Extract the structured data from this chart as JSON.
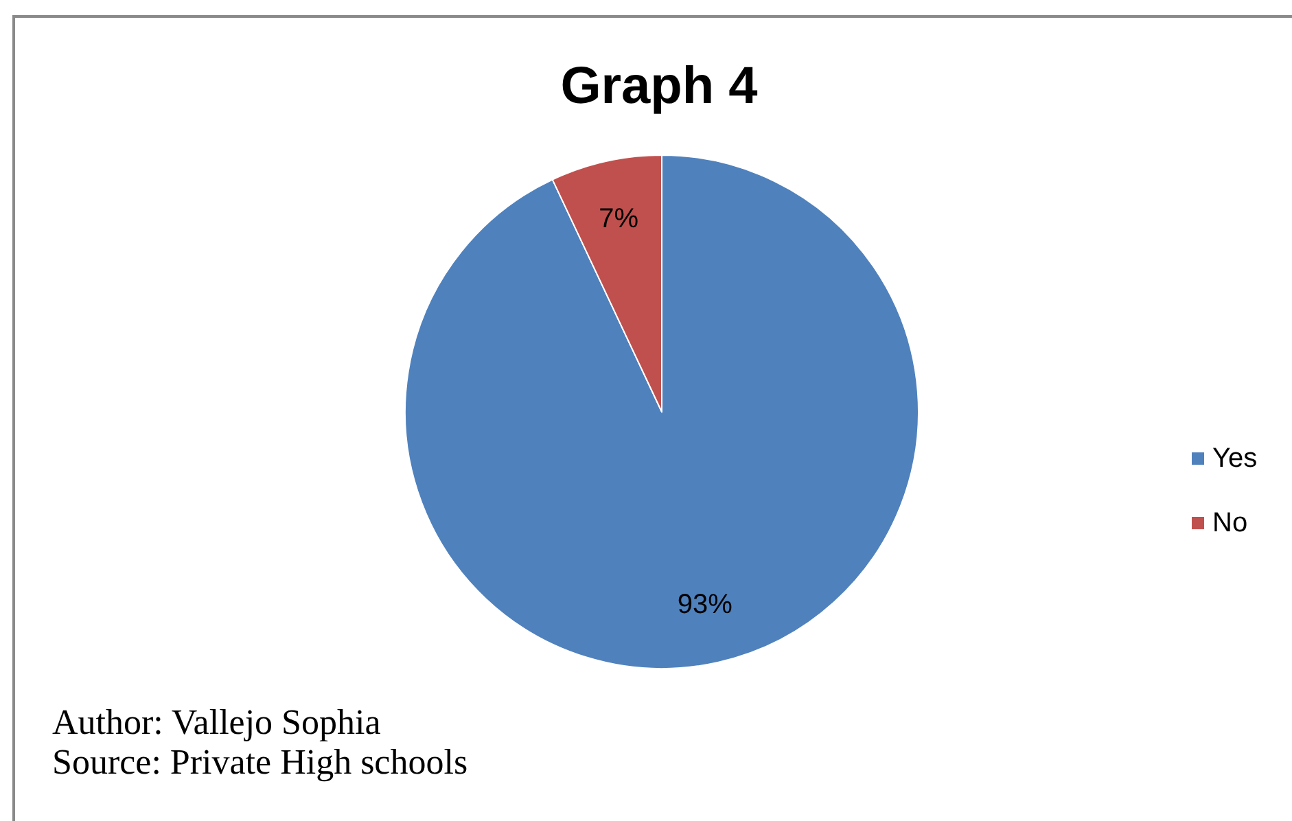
{
  "chart_data": {
    "type": "pie",
    "title": "Graph 4",
    "categories": [
      "Yes",
      "No"
    ],
    "values": [
      93,
      7
    ],
    "colors": [
      "#4f81bd",
      "#c0504d"
    ],
    "value_labels": [
      "93%",
      "7%"
    ],
    "legend": "right",
    "annotations": [
      "Author: Vallejo Sophia",
      "Source: Private High schools"
    ]
  }
}
